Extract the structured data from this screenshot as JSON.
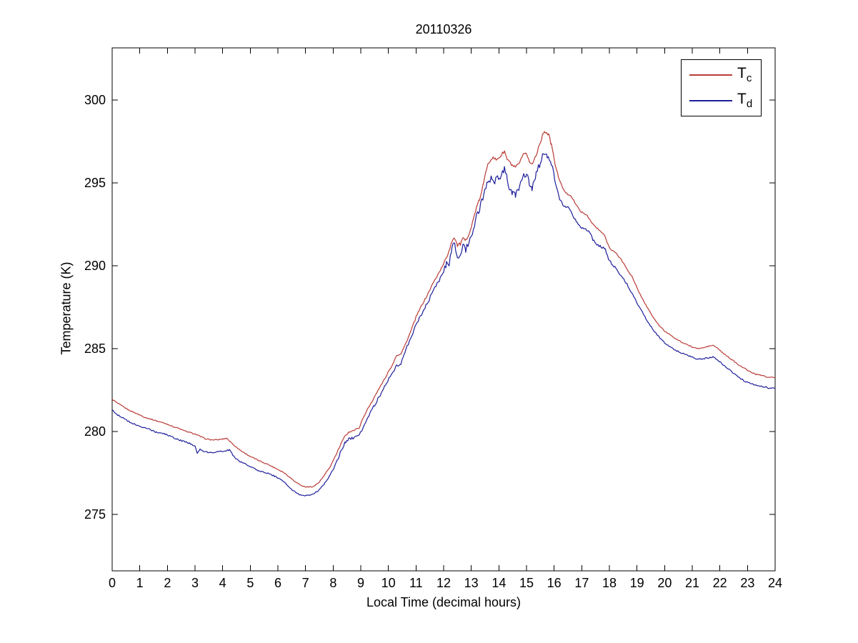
{
  "figure": {
    "title": "20110326",
    "xlabel": "Local Time (decimal hours)",
    "ylabel": "Temperature (K)"
  },
  "chart_data": {
    "type": "line",
    "title": "20110326",
    "xlabel": "Local Time (decimal hours)",
    "ylabel": "Temperature (K)",
    "xlim": [
      0,
      24
    ],
    "ylim": [
      271.6,
      303.1
    ],
    "xticks": [
      0,
      1,
      2,
      3,
      4,
      5,
      6,
      7,
      8,
      9,
      10,
      11,
      12,
      13,
      14,
      15,
      16,
      17,
      18,
      19,
      20,
      21,
      22,
      23,
      24
    ],
    "yticks": [
      275,
      280,
      285,
      290,
      295,
      300
    ],
    "grid": false,
    "legend_position": "upper right",
    "background": "#ffffff",
    "axis_color": "#000000",
    "series": [
      {
        "name": "T_c",
        "label_base": "T",
        "label_sub": "c",
        "color": "#b93c37",
        "points": [
          [
            0,
            281.95
          ],
          [
            0.2,
            281.7
          ],
          [
            0.4,
            281.5
          ],
          [
            0.6,
            281.3
          ],
          [
            0.8,
            281.15
          ],
          [
            1,
            281
          ],
          [
            1.2,
            280.85
          ],
          [
            1.4,
            280.75
          ],
          [
            1.6,
            280.65
          ],
          [
            1.8,
            280.55
          ],
          [
            2,
            280.45
          ],
          [
            2.2,
            280.3
          ],
          [
            2.4,
            280.2
          ],
          [
            2.6,
            280.05
          ],
          [
            2.8,
            279.95
          ],
          [
            3,
            279.85
          ],
          [
            3.2,
            279.7
          ],
          [
            3.4,
            279.55
          ],
          [
            3.6,
            279.5
          ],
          [
            3.8,
            279.5
          ],
          [
            4,
            279.55
          ],
          [
            4.15,
            279.6
          ],
          [
            4.3,
            279.35
          ],
          [
            4.5,
            279.05
          ],
          [
            4.7,
            278.8
          ],
          [
            5,
            278.5
          ],
          [
            5.3,
            278.25
          ],
          [
            5.6,
            278.05
          ],
          [
            5.9,
            277.8
          ],
          [
            6.2,
            277.55
          ],
          [
            6.5,
            277.15
          ],
          [
            6.7,
            276.9
          ],
          [
            6.9,
            276.7
          ],
          [
            7.1,
            276.65
          ],
          [
            7.3,
            276.7
          ],
          [
            7.5,
            276.95
          ],
          [
            7.7,
            277.4
          ],
          [
            7.9,
            277.9
          ],
          [
            8.1,
            278.6
          ],
          [
            8.3,
            279.3
          ],
          [
            8.45,
            279.8
          ],
          [
            8.6,
            280
          ],
          [
            8.8,
            280.1
          ],
          [
            8.95,
            280.25
          ],
          [
            9.1,
            280.9
          ],
          [
            9.3,
            281.5
          ],
          [
            9.5,
            282.1
          ],
          [
            9.7,
            282.7
          ],
          [
            9.9,
            283.3
          ],
          [
            10.1,
            283.9
          ],
          [
            10.3,
            284.6
          ],
          [
            10.45,
            284.7
          ],
          [
            10.6,
            285.2
          ],
          [
            10.8,
            286
          ],
          [
            11,
            286.9
          ],
          [
            11.2,
            287.6
          ],
          [
            11.4,
            288.2
          ],
          [
            11.6,
            288.9
          ],
          [
            11.8,
            289.5
          ],
          [
            12,
            290.1
          ],
          [
            12.15,
            290.7
          ],
          [
            12.3,
            291.5
          ],
          [
            12.4,
            291.7
          ],
          [
            12.5,
            291.2
          ],
          [
            12.6,
            291.3
          ],
          [
            12.7,
            291.6
          ],
          [
            12.8,
            291.5
          ],
          [
            13,
            292.3
          ],
          [
            13.15,
            293.3
          ],
          [
            13.3,
            294
          ],
          [
            13.45,
            295
          ],
          [
            13.6,
            296.2
          ],
          [
            13.75,
            296.5
          ],
          [
            13.9,
            296.4
          ],
          [
            14.05,
            296.6
          ],
          [
            14.2,
            296.9
          ],
          [
            14.3,
            296.4
          ],
          [
            14.45,
            296.1
          ],
          [
            14.6,
            295.9
          ],
          [
            14.75,
            296.2
          ],
          [
            14.9,
            296.7
          ],
          [
            15,
            296.8
          ],
          [
            15.1,
            296.3
          ],
          [
            15.2,
            296.1
          ],
          [
            15.35,
            296.7
          ],
          [
            15.5,
            297.5
          ],
          [
            15.65,
            298.15
          ],
          [
            15.8,
            297.9
          ],
          [
            15.9,
            297.3
          ],
          [
            16.05,
            296
          ],
          [
            16.15,
            295.4
          ],
          [
            16.3,
            294.7
          ],
          [
            16.45,
            294.35
          ],
          [
            16.6,
            294.25
          ],
          [
            16.75,
            293.8
          ],
          [
            16.9,
            293.4
          ],
          [
            17.05,
            293.15
          ],
          [
            17.2,
            293.05
          ],
          [
            17.35,
            292.6
          ],
          [
            17.5,
            292.35
          ],
          [
            17.65,
            292.1
          ],
          [
            17.8,
            291.9
          ],
          [
            18,
            291.1
          ],
          [
            18.2,
            290.8
          ],
          [
            18.4,
            290.45
          ],
          [
            18.6,
            289.9
          ],
          [
            18.8,
            289.4
          ],
          [
            19,
            288.65
          ],
          [
            19.2,
            288
          ],
          [
            19.4,
            287.4
          ],
          [
            19.6,
            286.85
          ],
          [
            19.8,
            286.4
          ],
          [
            20,
            286.05
          ],
          [
            20.2,
            285.85
          ],
          [
            20.4,
            285.6
          ],
          [
            20.6,
            285.4
          ],
          [
            20.8,
            285.25
          ],
          [
            21,
            285.1
          ],
          [
            21.2,
            285
          ],
          [
            21.4,
            285.05
          ],
          [
            21.6,
            285.15
          ],
          [
            21.75,
            285.2
          ],
          [
            21.9,
            285.05
          ],
          [
            22.1,
            284.75
          ],
          [
            22.3,
            284.5
          ],
          [
            22.5,
            284.25
          ],
          [
            22.7,
            284
          ],
          [
            22.9,
            283.8
          ],
          [
            23.1,
            283.6
          ],
          [
            23.3,
            283.45
          ],
          [
            23.5,
            283.4
          ],
          [
            23.7,
            283.3
          ],
          [
            23.9,
            283.3
          ],
          [
            24,
            283.25
          ]
        ]
      },
      {
        "name": "T_d",
        "label_base": "T",
        "label_sub": "d",
        "color": "#1e1e9b",
        "points": [
          [
            0,
            281.3
          ],
          [
            0.2,
            281
          ],
          [
            0.4,
            280.8
          ],
          [
            0.6,
            280.6
          ],
          [
            0.8,
            280.45
          ],
          [
            1,
            280.3
          ],
          [
            1.2,
            280.2
          ],
          [
            1.4,
            280.1
          ],
          [
            1.6,
            279.95
          ],
          [
            1.8,
            279.9
          ],
          [
            2,
            279.8
          ],
          [
            2.2,
            279.65
          ],
          [
            2.4,
            279.5
          ],
          [
            2.6,
            279.4
          ],
          [
            2.8,
            279.3
          ],
          [
            3,
            279.1
          ],
          [
            3.08,
            278.65
          ],
          [
            3.18,
            278.95
          ],
          [
            3.3,
            278.8
          ],
          [
            3.5,
            278.75
          ],
          [
            3.7,
            278.75
          ],
          [
            3.9,
            278.8
          ],
          [
            4.1,
            278.85
          ],
          [
            4.25,
            278.9
          ],
          [
            4.4,
            278.5
          ],
          [
            4.6,
            278.2
          ],
          [
            4.8,
            278.05
          ],
          [
            5,
            277.9
          ],
          [
            5.3,
            277.65
          ],
          [
            5.6,
            277.5
          ],
          [
            5.9,
            277.3
          ],
          [
            6.2,
            277
          ],
          [
            6.5,
            276.5
          ],
          [
            6.7,
            276.25
          ],
          [
            6.9,
            276.15
          ],
          [
            7.1,
            276.15
          ],
          [
            7.3,
            276.25
          ],
          [
            7.5,
            276.5
          ],
          [
            7.7,
            276.9
          ],
          [
            7.9,
            277.4
          ],
          [
            8.1,
            278.1
          ],
          [
            8.3,
            278.9
          ],
          [
            8.45,
            279.4
          ],
          [
            8.6,
            279.6
          ],
          [
            8.8,
            279.65
          ],
          [
            8.95,
            279.75
          ],
          [
            9.1,
            280.3
          ],
          [
            9.3,
            281
          ],
          [
            9.5,
            281.6
          ],
          [
            9.7,
            282.2
          ],
          [
            9.9,
            282.8
          ],
          [
            10.1,
            283.4
          ],
          [
            10.3,
            284
          ],
          [
            10.45,
            284.1
          ],
          [
            10.6,
            284.8
          ],
          [
            10.8,
            285.6
          ],
          [
            11,
            286.4
          ],
          [
            11.2,
            287.1
          ],
          [
            11.4,
            287.7
          ],
          [
            11.6,
            288.4
          ],
          [
            11.8,
            289
          ],
          [
            12,
            289.6
          ],
          [
            12.1,
            290.2
          ],
          [
            12.2,
            289.9
          ],
          [
            12.3,
            291.2
          ],
          [
            12.4,
            291.3
          ],
          [
            12.5,
            290.4
          ],
          [
            12.6,
            290.7
          ],
          [
            12.7,
            291.1
          ],
          [
            12.8,
            291
          ],
          [
            13,
            291.8
          ],
          [
            13.15,
            292.7
          ],
          [
            13.3,
            293.4
          ],
          [
            13.45,
            294.2
          ],
          [
            13.6,
            295.1
          ],
          [
            13.75,
            295.3
          ],
          [
            13.85,
            295
          ],
          [
            13.95,
            295.3
          ],
          [
            14.05,
            295.1
          ],
          [
            14.2,
            295.9
          ],
          [
            14.3,
            295.2
          ],
          [
            14.4,
            294.6
          ],
          [
            14.5,
            294.35
          ],
          [
            14.6,
            294.2
          ],
          [
            14.75,
            294.9
          ],
          [
            14.9,
            295.5
          ],
          [
            15,
            295.6
          ],
          [
            15.1,
            294.9
          ],
          [
            15.2,
            294.65
          ],
          [
            15.35,
            295.5
          ],
          [
            15.5,
            296.3
          ],
          [
            15.65,
            296.9
          ],
          [
            15.75,
            296.6
          ],
          [
            15.9,
            296.1
          ],
          [
            16.05,
            294.9
          ],
          [
            16.2,
            294
          ],
          [
            16.35,
            293.6
          ],
          [
            16.5,
            293.5
          ],
          [
            16.65,
            293.1
          ],
          [
            16.8,
            292.7
          ],
          [
            16.95,
            292.35
          ],
          [
            17.1,
            292.2
          ],
          [
            17.25,
            292.1
          ],
          [
            17.4,
            291.6
          ],
          [
            17.55,
            291.3
          ],
          [
            17.7,
            291.15
          ],
          [
            17.85,
            291
          ],
          [
            18,
            290.3
          ],
          [
            18.2,
            289.9
          ],
          [
            18.4,
            289.5
          ],
          [
            18.6,
            289
          ],
          [
            18.8,
            288.4
          ],
          [
            19,
            287.75
          ],
          [
            19.2,
            287.2
          ],
          [
            19.4,
            286.6
          ],
          [
            19.6,
            286.1
          ],
          [
            19.8,
            285.7
          ],
          [
            20,
            285.35
          ],
          [
            20.2,
            285.1
          ],
          [
            20.4,
            284.9
          ],
          [
            20.6,
            284.75
          ],
          [
            20.8,
            284.6
          ],
          [
            21,
            284.5
          ],
          [
            21.2,
            284.35
          ],
          [
            21.4,
            284.4
          ],
          [
            21.6,
            284.45
          ],
          [
            21.75,
            284.5
          ],
          [
            21.9,
            284.35
          ],
          [
            22.1,
            284.05
          ],
          [
            22.3,
            283.8
          ],
          [
            22.5,
            283.5
          ],
          [
            22.7,
            283.25
          ],
          [
            22.9,
            283.05
          ],
          [
            23.1,
            282.9
          ],
          [
            23.3,
            282.8
          ],
          [
            23.5,
            282.75
          ],
          [
            23.7,
            282.65
          ],
          [
            23.9,
            282.6
          ],
          [
            24,
            282.6
          ]
        ]
      }
    ],
    "noise_profile": [
      {
        "from": 0,
        "to": 8,
        "amp": [
          0.03,
          0.04
        ]
      },
      {
        "from": 8,
        "to": 12,
        "amp": [
          0.05,
          0.09
        ]
      },
      {
        "from": 12,
        "to": 16,
        "amp": [
          0.1,
          0.22
        ]
      },
      {
        "from": 16,
        "to": 19,
        "amp": [
          0.05,
          0.08
        ]
      },
      {
        "from": 19,
        "to": 24,
        "amp": [
          0.03,
          0.04
        ]
      }
    ]
  }
}
